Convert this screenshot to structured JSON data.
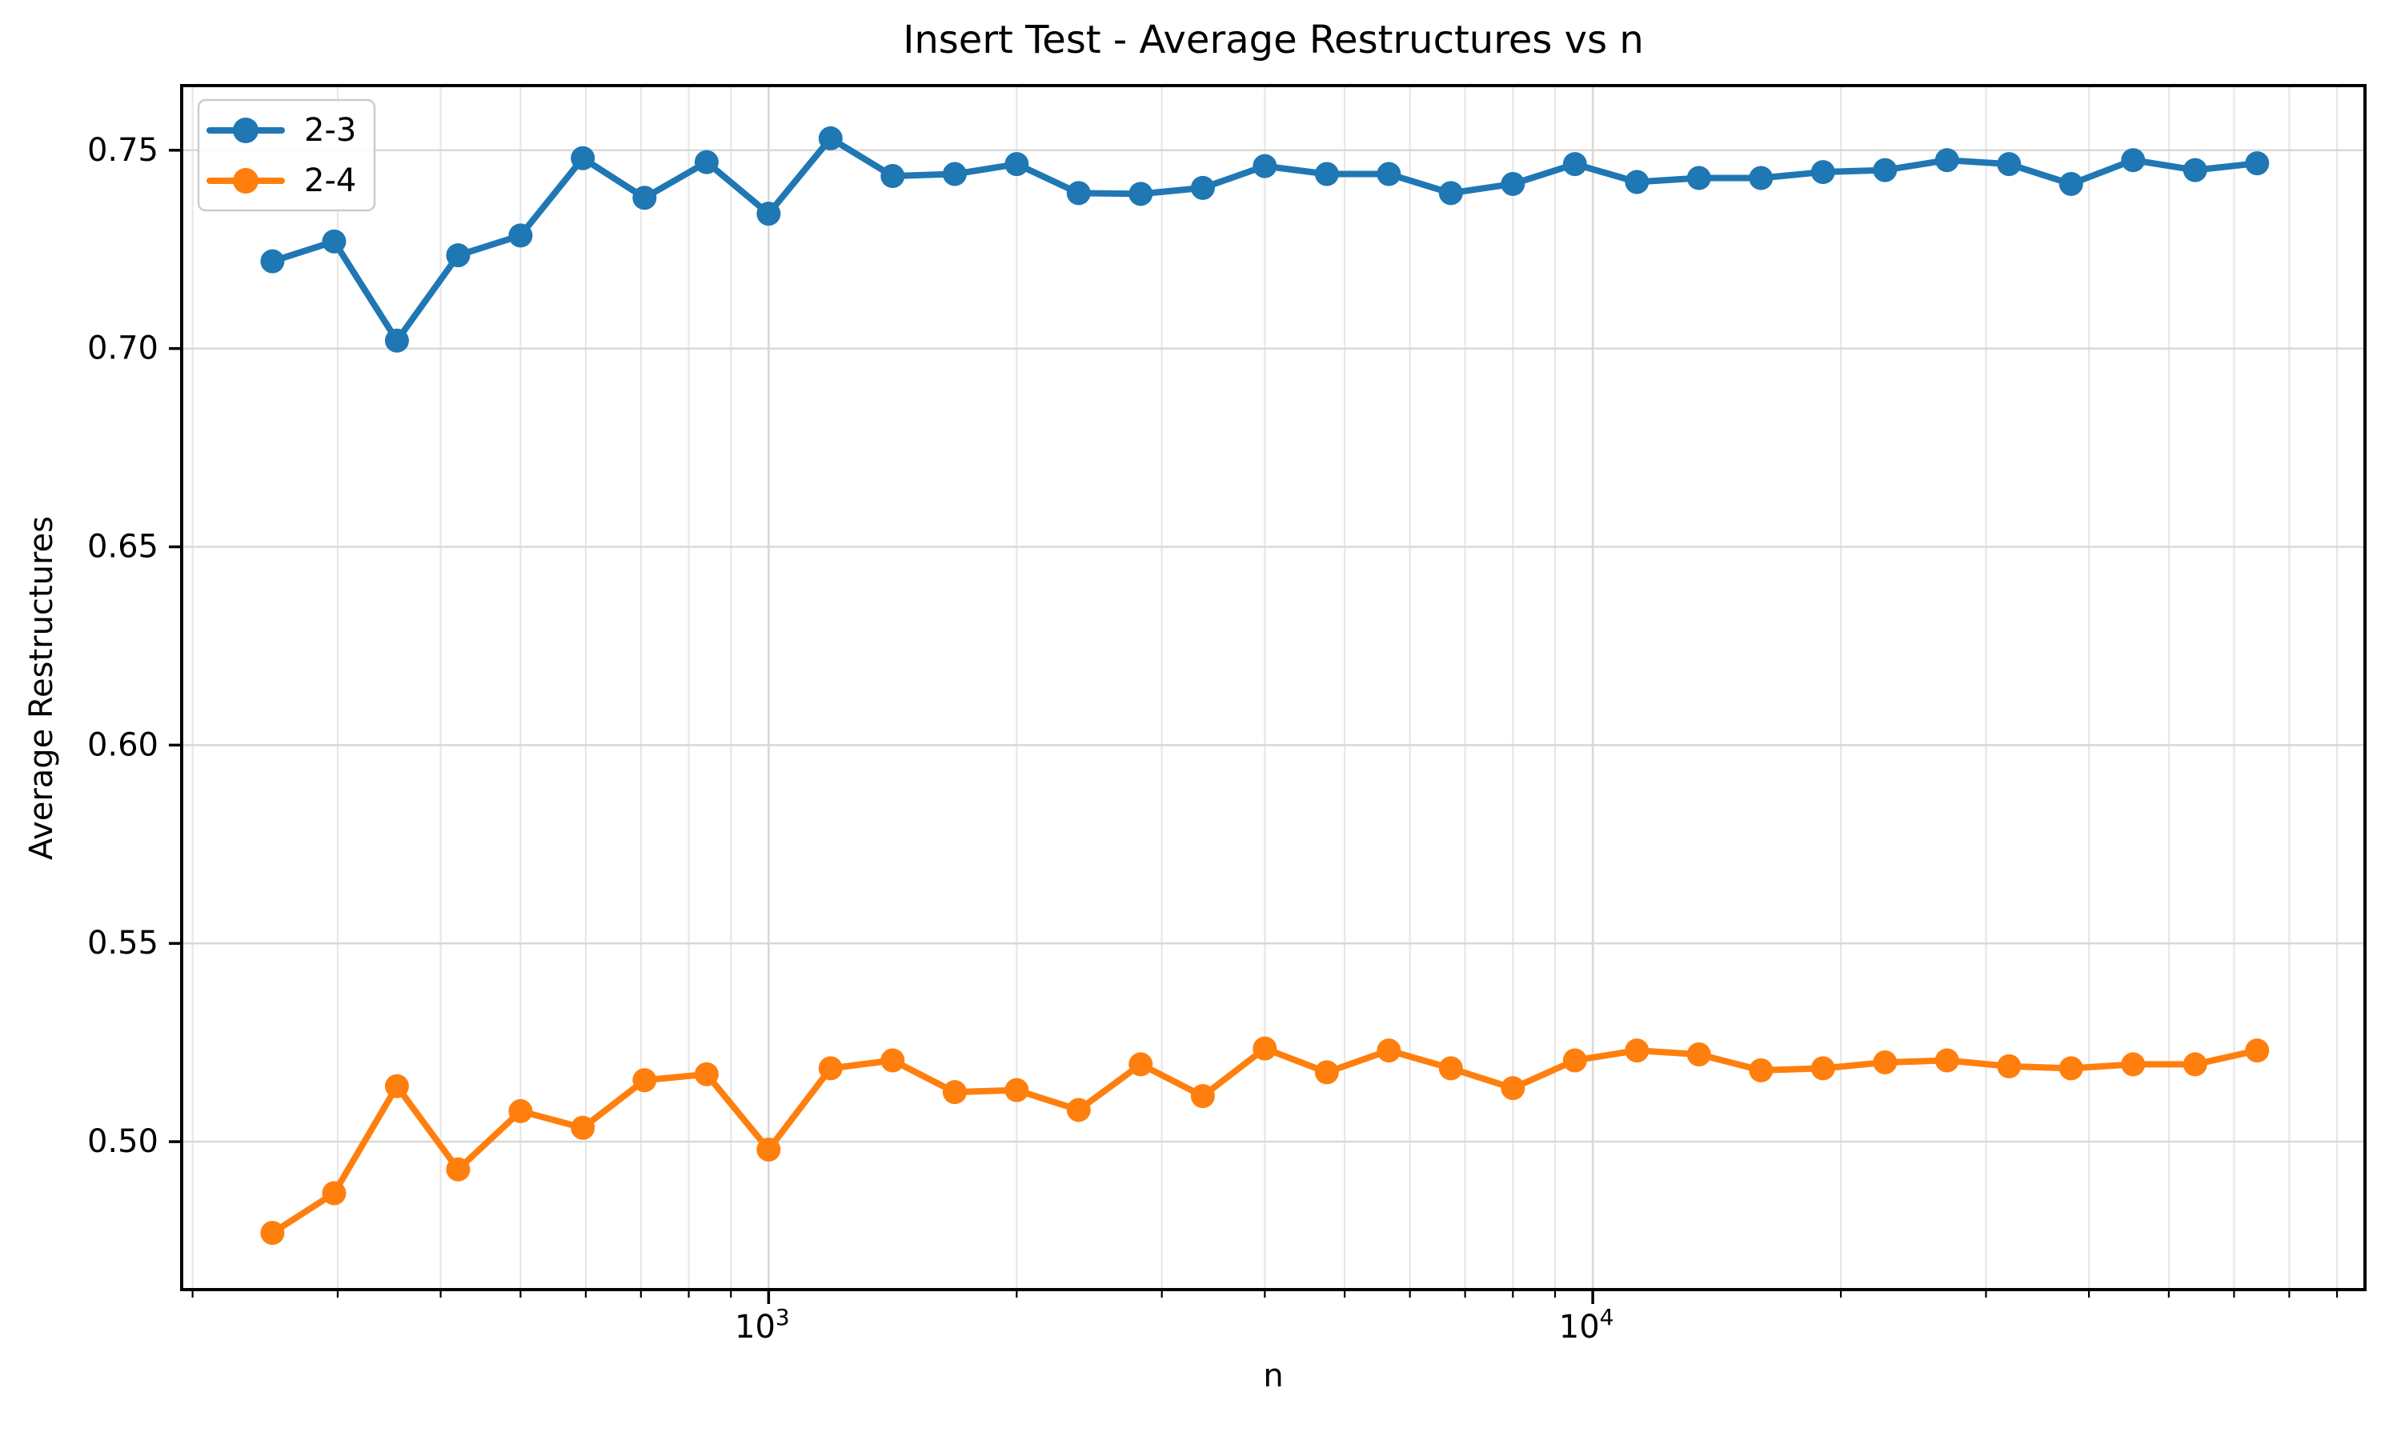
{
  "chart_data": {
    "type": "line",
    "title": "Insert Test - Average Restructures vs n",
    "xlabel": "n",
    "ylabel": "Average Restructures",
    "x_scale": "log",
    "grid": true,
    "legend_position": "upper-left",
    "xlim": [
      194,
      86500
    ],
    "ylim": [
      0.4627,
      0.7663
    ],
    "yticks": [
      {
        "v": 0.5,
        "label": "0.50"
      },
      {
        "v": 0.55,
        "label": "0.55"
      },
      {
        "v": 0.6,
        "label": "0.60"
      },
      {
        "v": 0.65,
        "label": "0.65"
      },
      {
        "v": 0.7,
        "label": "0.70"
      },
      {
        "v": 0.75,
        "label": "0.75"
      }
    ],
    "xticks_major": [
      {
        "v": 1000,
        "base": "10",
        "exp": "3"
      },
      {
        "v": 10000,
        "base": "10",
        "exp": "4"
      }
    ],
    "xgrid_minor": [
      200,
      300,
      400,
      500,
      600,
      700,
      800,
      900,
      2000,
      3000,
      4000,
      5000,
      6000,
      7000,
      8000,
      9000,
      20000,
      30000,
      40000,
      50000,
      60000,
      70000,
      80000
    ],
    "x": [
      250,
      297,
      354,
      420,
      500,
      595,
      707,
      841,
      1000,
      1189,
      1414,
      1682,
      2000,
      2378,
      2828,
      3364,
      4000,
      4757,
      5657,
      6727,
      8000,
      9514,
      11314,
      13454,
      16000,
      19027,
      22627,
      26909,
      32000,
      38055,
      45255,
      53817,
      64000
    ],
    "series": [
      {
        "name": "2-3",
        "color": "#1f77b4",
        "values": [
          0.722,
          0.727,
          0.702,
          0.7235,
          0.7285,
          0.748,
          0.738,
          0.747,
          0.734,
          0.753,
          0.7435,
          0.744,
          0.7465,
          0.7392,
          0.739,
          0.7405,
          0.746,
          0.744,
          0.744,
          0.7392,
          0.7415,
          0.7465,
          0.742,
          0.743,
          0.743,
          0.7445,
          0.745,
          0.7475,
          0.7465,
          0.7415,
          0.7475,
          0.745,
          0.7467
        ]
      },
      {
        "name": "2-4",
        "color": "#ff7f0e",
        "values": [
          0.477,
          0.487,
          0.514,
          0.493,
          0.5077,
          0.5035,
          0.5155,
          0.517,
          0.498,
          0.5185,
          0.5205,
          0.5125,
          0.513,
          0.508,
          0.5195,
          0.5115,
          0.5235,
          0.5175,
          0.523,
          0.5185,
          0.5135,
          0.5205,
          0.523,
          0.522,
          0.518,
          0.5185,
          0.52,
          0.5205,
          0.519,
          0.5185,
          0.5195,
          0.5195,
          0.523
        ]
      }
    ]
  },
  "colors": {
    "background": "#ffffff",
    "axis": "#000000",
    "grid_major": "#d8d8d8",
    "grid_minor": "#e7e7e7",
    "legend_border": "#cccccc",
    "legend_bg": "#ffffff"
  }
}
